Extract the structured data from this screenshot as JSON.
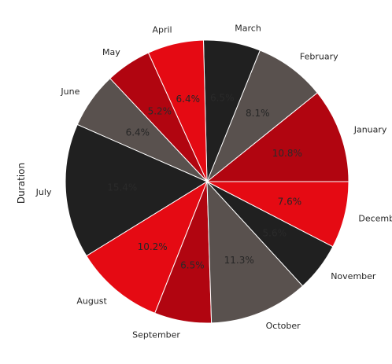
{
  "chart_data": {
    "type": "pie",
    "title": "",
    "ylabel": "Duration",
    "start_angle_deg": 0,
    "direction": "counterclockwise",
    "slices": [
      {
        "label": "January",
        "pct_text": "10.8%",
        "value": 10.8,
        "color": "#b10510"
      },
      {
        "label": "February",
        "pct_text": "8.1%",
        "value": 8.1,
        "color": "#59514e"
      },
      {
        "label": "March",
        "pct_text": "6.5%",
        "value": 6.5,
        "color": "#202020"
      },
      {
        "label": "April",
        "pct_text": "6.4%",
        "value": 6.4,
        "color": "#e50a13"
      },
      {
        "label": "May",
        "pct_text": "5.2%",
        "value": 5.2,
        "color": "#b10510"
      },
      {
        "label": "June",
        "pct_text": "6.4%",
        "value": 6.4,
        "color": "#59514e"
      },
      {
        "label": "July",
        "pct_text": "15.4%",
        "value": 15.4,
        "color": "#202020"
      },
      {
        "label": "August",
        "pct_text": "10.2%",
        "value": 10.2,
        "color": "#e50a13"
      },
      {
        "label": "September",
        "pct_text": "6.5%",
        "value": 6.5,
        "color": "#b10510"
      },
      {
        "label": "October",
        "pct_text": "11.3%",
        "value": 11.3,
        "color": "#59514e"
      },
      {
        "label": "November",
        "pct_text": "5.6%",
        "value": 5.6,
        "color": "#202020"
      },
      {
        "label": "December",
        "pct_text": "7.6%",
        "value": 7.6,
        "color": "#e50a13"
      }
    ]
  }
}
